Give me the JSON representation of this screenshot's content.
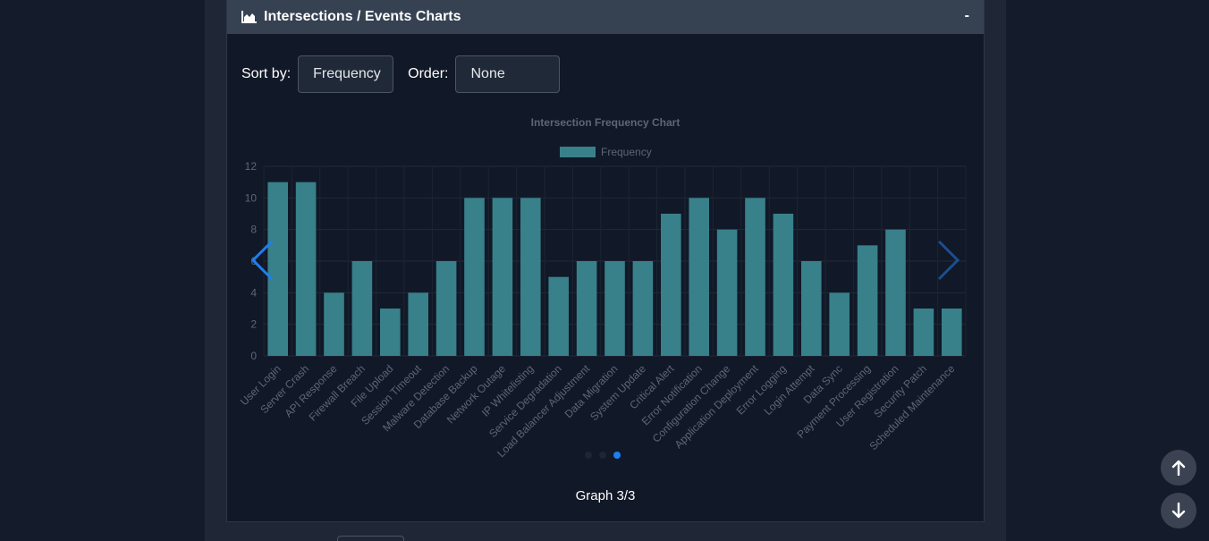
{
  "panel": {
    "title": "Intersections / Events Charts",
    "collapse_label": "-",
    "header_icon": "chart-area-icon"
  },
  "controls": {
    "sort_label": "Sort by:",
    "sort_value": "Frequency",
    "order_label": "Order:",
    "order_value": "None"
  },
  "pagination": {
    "counter_text": "Graph 3/3",
    "total": 3,
    "current": 3
  },
  "colors": {
    "bar": "#38808a",
    "accent": "#1d7ff0",
    "background": "#111827"
  },
  "chart_data": {
    "type": "bar",
    "title": "Intersection Frequency Chart",
    "legend": "top",
    "grid": true,
    "ylim": [
      0,
      12
    ],
    "yticks": [
      0,
      2,
      4,
      6,
      8,
      10,
      12
    ],
    "categories": [
      "User Login",
      "Server Crash",
      "API Response",
      "Firewall Breach",
      "File Upload",
      "Session Timeout",
      "Malware Detection",
      "Database Backup",
      "Network Outage",
      "IP Whitelisting",
      "Service Degradation",
      "Load Balancer Adjustment",
      "Data Migration",
      "System Update",
      "Critical Alert",
      "Error Notification",
      "Configuration Change",
      "Application Deployment",
      "Error Logging",
      "Login Attempt",
      "Data Sync",
      "Payment Processing",
      "User Registration",
      "Security Patch",
      "Scheduled Maintenance"
    ],
    "series": [
      {
        "name": "Frequency",
        "values": [
          11,
          11,
          4,
          6,
          3,
          4,
          6,
          10,
          10,
          10,
          5,
          6,
          6,
          6,
          9,
          10,
          8,
          10,
          9,
          6,
          4,
          7,
          8,
          3,
          3
        ]
      }
    ]
  }
}
